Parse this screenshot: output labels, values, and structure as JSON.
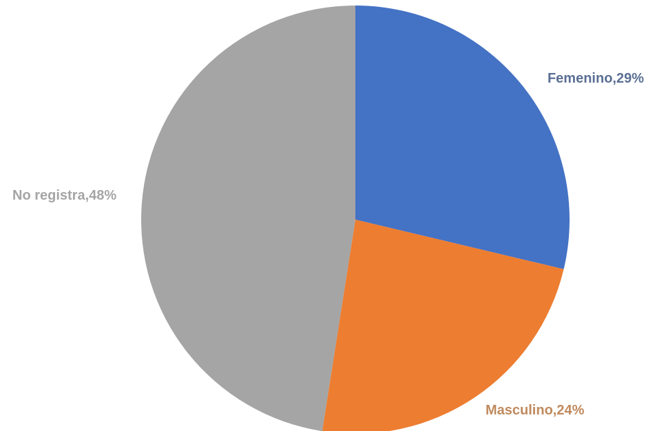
{
  "chart_data": {
    "type": "pie",
    "title": "",
    "slices": [
      {
        "label": "Femenino",
        "value": 29,
        "display": "Femenino,29%",
        "color": "#4472C4",
        "label_color": "#5B6F94"
      },
      {
        "label": "Masculino",
        "value": 24,
        "display": "Masculino,24%",
        "color": "#ED7D31",
        "label_color": "#C08A5E"
      },
      {
        "label": "No registra",
        "value": 48,
        "display": "No registra,48%",
        "color": "#A5A5A5",
        "label_color": "#A5A5A5"
      }
    ],
    "start_angle": "12 o'clock",
    "direction": "clockwise"
  }
}
